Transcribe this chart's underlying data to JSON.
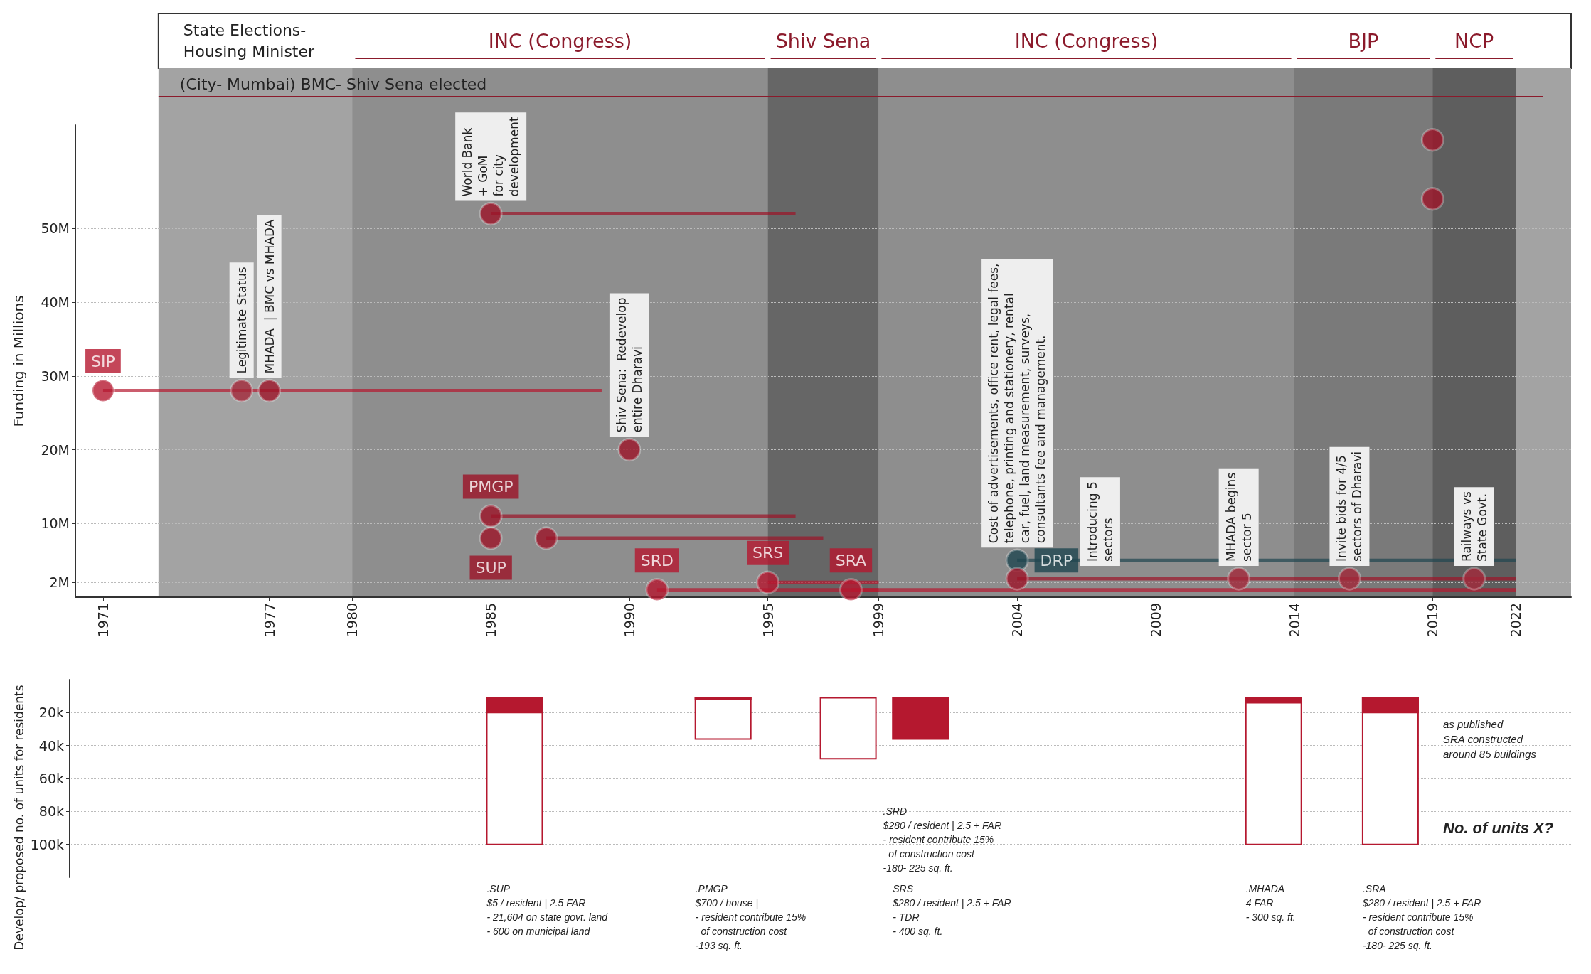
{
  "chart_data": [
    {
      "type": "scatter",
      "ylabel": "Funding in Millions",
      "xlim": [
        1970,
        2024
      ],
      "xticks": [
        1971,
        1977,
        1980,
        1985,
        1990,
        1995,
        1999,
        2004,
        2009,
        2014,
        2019,
        2022
      ],
      "ylim": [
        0,
        64
      ],
      "yticks": [
        {
          "value": 2,
          "label": "2M"
        },
        {
          "value": 10,
          "label": "10M"
        },
        {
          "value": 20,
          "label": "20M"
        },
        {
          "value": 30,
          "label": "30M"
        },
        {
          "value": 40,
          "label": "40M"
        },
        {
          "value": 50,
          "label": "50M"
        }
      ],
      "grid": "y",
      "marker": "circle",
      "bands": [
        {
          "axis": "x",
          "from": 1973,
          "to": 2024,
          "label": "(City- Mumbai) BMC- Shiv Sena elected",
          "color": "#a3a3a3"
        },
        {
          "axis": "x",
          "from": 1980,
          "to": 1995,
          "label": "INC (Congress)",
          "color": "#8e8e8e"
        },
        {
          "axis": "x",
          "from": 1995,
          "to": 1999,
          "label": "Shiv Sena",
          "color": "#666666"
        },
        {
          "axis": "x",
          "from": 1999,
          "to": 2014,
          "label": "INC (Congress)",
          "color": "#8e8e8e"
        },
        {
          "axis": "x",
          "from": 2014,
          "to": 2019,
          "label": "BJP",
          "color": "#7a7a7a"
        },
        {
          "axis": "x",
          "from": 2019,
          "to": 2022,
          "label": "NCP",
          "color": "#5e5e5e"
        }
      ],
      "annotations": [
        "State Elections-\nHousing Minister",
        {
          "text": "Legitimate Status",
          "x": 1976,
          "y": 28
        },
        {
          "text": "MHADA  | BMC vs MHADA",
          "x": 1977,
          "y": 28
        },
        {
          "text": "World Bank\n+ GoM\nfor city\ndevelopment",
          "x": 1985,
          "y": 52
        },
        {
          "text": "Shiv Sena:  Redevelop\nentire Dharavi",
          "x": 1990,
          "y": 20
        },
        {
          "text": "Cost of advertisements, office rent, legal fees,\ntelephone, printing and stationery, rental\ncar, fuel, land measurement, surveys,\nconsultants fee and management.",
          "x": 2004,
          "y": 5
        },
        {
          "text": "Introducing 5\nsectors",
          "x": 2007,
          "y": 2.5
        },
        {
          "text": "MHADA begins\nsector 5",
          "x": 2012,
          "y": 2.5
        },
        {
          "text": "Invite bids for 4/5\nsectors of Dharavi",
          "x": 2016,
          "y": 2.5
        },
        {
          "text": "Railways vs\nState Govt.",
          "x": 2020.5,
          "y": 2.5
        }
      ],
      "series": [
        {
          "name": "SIP",
          "color": "#b5182f",
          "x": [
            1971
          ],
          "values": [
            28
          ],
          "xerrors": [
            [
              1971,
              1989
            ]
          ]
        },
        {
          "name": "PMGP",
          "color": "#9c1428",
          "x": [
            1985
          ],
          "values": [
            11
          ],
          "xerrors": [
            [
              1985,
              1996
            ]
          ]
        },
        {
          "name": "SUP",
          "color": "#9c1428",
          "x": [
            1985
          ],
          "values": [
            8
          ],
          "xerrors": [
            null
          ]
        },
        {
          "name": "SRD",
          "color": "#b5182f",
          "x": [
            1991
          ],
          "values": [
            1
          ],
          "xerrors": [
            [
              1991,
              1999
            ]
          ]
        },
        {
          "name": "SRS",
          "color": "#b5182f",
          "x": [
            1995
          ],
          "values": [
            2
          ],
          "xerrors": [
            [
              1995,
              1999
            ]
          ]
        },
        {
          "name": "SRA",
          "color": "#b5182f",
          "x": [
            1998
          ],
          "values": [
            1
          ],
          "xerrors": [
            [
              1998,
              2022
            ]
          ]
        },
        {
          "name": "DRP",
          "color": "#1f4650",
          "x": [
            2004
          ],
          "values": [
            5
          ],
          "xerrors": [
            [
              2004,
              2022
            ]
          ]
        },
        {
          "color": "#9c1428",
          "x": [
            1977,
            1985,
            1990,
            1987,
            2004,
            2019,
            2019
          ],
          "values": [
            28,
            52,
            20,
            8,
            2.5,
            62,
            54
          ],
          "xerrors": [
            null,
            [
              1985,
              1996
            ],
            null,
            [
              1987,
              1997
            ],
            [
              2004,
              2022
            ],
            null,
            null
          ]
        },
        {
          "color": "#a3283a",
          "x": [
            1976,
            2012,
            2016,
            2020.5
          ],
          "values": [
            28,
            2.5,
            2.5,
            2.5
          ]
        }
      ]
    },
    {
      "type": "bar",
      "ylabel": "Develop/ proposed no. of units for residents",
      "x": [
        1986,
        1993.5,
        1998,
        2000.6,
        2013.3,
        2017.5
      ],
      "xlim": [
        1970,
        2024
      ],
      "ylim": [
        120,
        0
      ],
      "yticks": [
        {
          "value": 20,
          "label": "20k"
        },
        {
          "value": 40,
          "label": "40k"
        },
        {
          "value": 60,
          "label": "60k"
        },
        {
          "value": 80,
          "label": "80k"
        },
        {
          "value": 100,
          "label": "100k"
        }
      ],
      "grid": "y",
      "tick_labels": "y",
      "series": [
        {
          "color": "#b5182f",
          "values": [
            9,
            1,
            null,
            25,
            3,
            9
          ],
          "base": [
            11,
            11,
            null,
            11,
            11,
            11
          ]
        },
        {
          "color": "#ffffff",
          "values": [
            89,
            25,
            37,
            null,
            89,
            89
          ],
          "base": [
            11,
            11,
            11,
            null,
            11,
            11
          ]
        }
      ],
      "annotations": [
        ".SUP\n$5 / resident | 2.5 FAR\n- 21,604 on state govt. land\n- 600 on municipal land",
        ".PMGP\n$700 / house |\n- resident contribute 15%\n  of construction cost\n-193 sq. ft.",
        ".SRD\n$280 / resident | 2.5 + FAR\n- resident contribute 15%\n  of construction cost\n-180- 225 sq. ft.",
        "SRS\n$280 / resident | 2.5 + FAR\n- TDR\n- 400 sq. ft.",
        ".MHADA\n4 FAR\n- 300 sq. ft.",
        ".SRA\n$280 / resident | 2.5 + FAR\n- resident contribute 15%\n  of construction cost\n-180- 225 sq. ft.",
        "as published\nSRA constructed\naround 85 buildings",
        "No. of units X?"
      ]
    }
  ]
}
